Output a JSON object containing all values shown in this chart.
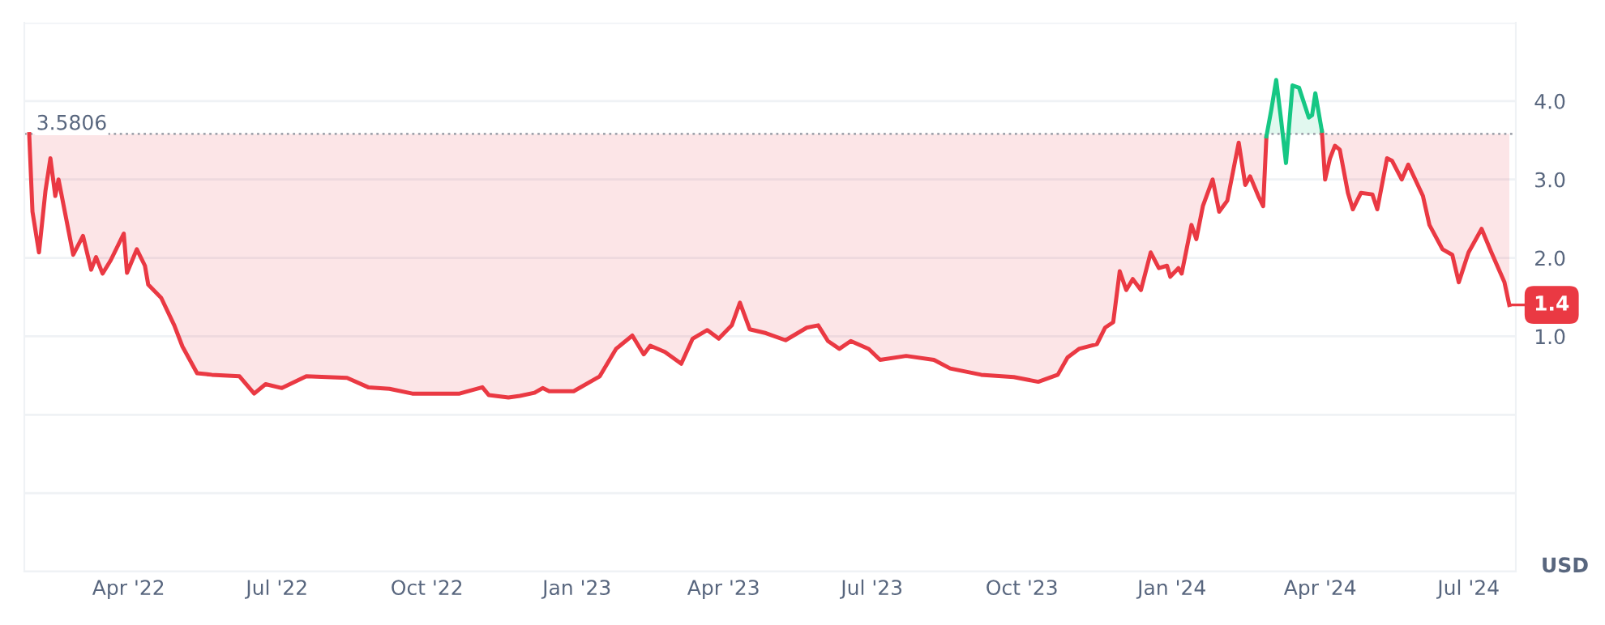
{
  "chart_data": {
    "type": "line",
    "series": [
      {
        "color": "#ea3943",
        "x": [
          "2022-01-30",
          "2022-02-01",
          "2022-02-05",
          "2022-02-09",
          "2022-02-12",
          "2022-02-15",
          "2022-02-17",
          "2022-02-26",
          "2022-03-04",
          "2022-03-09",
          "2022-03-12",
          "2022-03-16",
          "2022-03-21",
          "2022-03-29",
          "2022-03-31",
          "2022-04-06",
          "2022-04-11",
          "2022-04-13",
          "2022-04-21",
          "2022-04-29",
          "2022-05-04",
          "2022-05-13",
          "2022-05-22",
          "2022-06-08",
          "2022-06-17",
          "2022-06-24",
          "2022-07-04",
          "2022-07-19",
          "2022-08-13",
          "2022-08-26",
          "2022-09-08",
          "2022-09-22",
          "2022-10-21",
          "2022-11-04",
          "2022-11-08",
          "2022-11-20",
          "2022-11-27",
          "2022-12-06",
          "2022-12-11",
          "2022-12-15",
          "2022-12-30",
          "2023-01-15",
          "2023-01-25",
          "2023-02-04",
          "2023-02-11",
          "2023-02-15",
          "2023-02-24",
          "2023-03-06",
          "2023-03-13",
          "2023-03-22",
          "2023-03-29",
          "2023-04-06",
          "2023-04-11",
          "2023-04-17",
          "2023-04-27",
          "2023-05-09",
          "2023-05-22",
          "2023-05-29",
          "2023-06-04",
          "2023-06-11",
          "2023-06-18",
          "2023-06-29",
          "2023-07-06",
          "2023-07-22",
          "2023-08-08",
          "2023-08-18",
          "2023-09-06",
          "2023-09-26",
          "2023-10-11",
          "2023-10-23",
          "2023-10-29",
          "2023-11-05",
          "2023-11-16",
          "2023-11-21",
          "2023-11-26",
          "2023-11-30",
          "2023-12-04",
          "2023-12-08",
          "2023-12-13",
          "2023-12-19",
          "2023-12-24",
          "2023-12-29",
          "2023-12-31",
          "2024-01-05",
          "2024-01-07",
          "2024-01-13",
          "2024-01-16",
          "2024-01-20",
          "2024-01-26",
          "2024-01-30",
          "2024-02-04",
          "2024-02-11",
          "2024-02-15",
          "2024-02-18",
          "2024-02-23",
          "2024-02-26",
          "2024-02-28",
          "2024-03-15",
          "2024-04-02",
          "2024-04-04",
          "2024-04-07",
          "2024-04-10",
          "2024-04-13",
          "2024-04-18",
          "2024-04-21",
          "2024-04-26",
          "2024-05-03",
          "2024-05-06",
          "2024-05-12",
          "2024-05-15",
          "2024-05-21",
          "2024-05-25",
          "2024-06-03",
          "2024-06-07",
          "2024-06-15",
          "2024-06-21",
          "2024-06-25",
          "2024-07-01",
          "2024-07-09",
          "2024-07-15",
          "2024-07-23",
          "2024-07-26"
        ],
        "values": [
          3.58,
          2.59,
          2.07,
          2.86,
          3.27,
          2.79,
          3.0,
          2.04,
          2.28,
          1.85,
          2.01,
          1.8,
          1.97,
          2.31,
          1.81,
          2.11,
          1.9,
          1.66,
          1.49,
          1.14,
          0.87,
          0.53,
          0.51,
          0.49,
          0.27,
          0.39,
          0.34,
          0.49,
          0.47,
          0.35,
          0.33,
          0.27,
          0.27,
          0.35,
          0.25,
          0.22,
          0.24,
          0.28,
          0.34,
          0.3,
          0.3,
          0.49,
          0.84,
          1.01,
          0.77,
          0.88,
          0.8,
          0.65,
          0.97,
          1.08,
          0.97,
          1.14,
          1.43,
          1.09,
          1.04,
          0.95,
          1.11,
          1.14,
          0.94,
          0.84,
          0.94,
          0.84,
          0.7,
          0.75,
          0.7,
          0.59,
          0.51,
          0.48,
          0.42,
          0.51,
          0.73,
          0.84,
          0.9,
          1.11,
          1.18,
          1.83,
          1.59,
          1.73,
          1.59,
          2.07,
          1.87,
          1.9,
          1.76,
          1.87,
          1.8,
          2.42,
          2.24,
          2.66,
          3.0,
          2.59,
          2.73,
          3.47,
          2.93,
          3.04,
          2.79,
          2.66,
          3.55,
          null,
          3.62,
          3.0,
          3.27,
          3.43,
          3.38,
          2.83,
          2.62,
          2.83,
          2.81,
          2.62,
          3.27,
          3.24,
          3.0,
          3.19,
          2.79,
          2.42,
          2.11,
          2.04,
          1.69,
          2.07,
          2.37,
          2.07,
          1.69,
          1.4
        ]
      },
      {
        "color": "#16c784",
        "x": [
          "2024-02-28",
          "2024-03-02",
          "2024-03-05",
          "2024-03-08",
          "2024-03-11",
          "2024-03-15",
          "2024-03-19",
          "2024-03-25",
          "2024-03-27",
          "2024-03-29",
          "2024-04-02"
        ],
        "values": [
          3.55,
          3.89,
          4.27,
          3.76,
          3.21,
          4.2,
          4.17,
          3.79,
          3.82,
          4.1,
          3.62
        ]
      }
    ],
    "xlim": [
      "2022-01-27",
      "2024-07-30"
    ],
    "xticks": [
      {
        "value": "2022-04-01",
        "label": "Apr '22"
      },
      {
        "value": "2022-07-01",
        "label": "Jul '22"
      },
      {
        "value": "2022-10-01",
        "label": "Oct '22"
      },
      {
        "value": "2023-01-01",
        "label": "Jan '23"
      },
      {
        "value": "2023-04-01",
        "label": "Apr '23"
      },
      {
        "value": "2023-07-01",
        "label": "Jul '23"
      },
      {
        "value": "2023-10-01",
        "label": "Oct '23"
      },
      {
        "value": "2024-01-01",
        "label": "Jan '24"
      },
      {
        "value": "2024-04-01",
        "label": "Apr '24"
      },
      {
        "value": "2024-07-01",
        "label": "Jul '24"
      }
    ],
    "ylim": [
      -2,
      5
    ],
    "yticks": [
      {
        "value": -2,
        "label": null
      },
      {
        "value": -1,
        "label": null
      },
      {
        "value": 0,
        "label": null
      },
      {
        "value": 1,
        "label": "1.0"
      },
      {
        "value": 2,
        "label": "2.0"
      },
      {
        "value": 3,
        "label": "3.0"
      },
      {
        "value": 4,
        "label": "4.0"
      },
      {
        "value": 5,
        "label": null
      }
    ],
    "ref_lines": [
      {
        "axis": "y",
        "value": 3.5806,
        "label": "3.5806",
        "color": "#a0a4ad",
        "line_style": "dotted"
      }
    ],
    "annotations": [
      {
        "text": "1.4",
        "x": "2024-07-26",
        "y": 1.4
      },
      "USD"
    ],
    "grid": "y",
    "legend": false,
    "marker": "none",
    "line_style": "solid"
  }
}
